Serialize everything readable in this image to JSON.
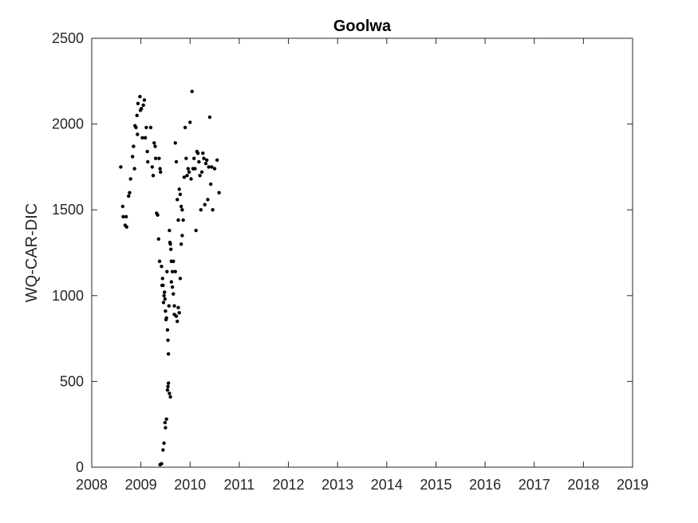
{
  "chart_data": {
    "type": "scatter",
    "title": "Goolwa",
    "xlabel": "",
    "ylabel": "WQ-CAR-DIC",
    "xlim": [
      2008,
      2019
    ],
    "ylim": [
      0,
      2500
    ],
    "xticks": [
      "2008",
      "2009",
      "2010",
      "2011",
      "2012",
      "2013",
      "2014",
      "2015",
      "2016",
      "2017",
      "2018",
      "2019"
    ],
    "yticks": [
      "0",
      "500",
      "1000",
      "1500",
      "2000",
      "2500"
    ],
    "grid": false,
    "marker_color": "#000000",
    "series": [
      {
        "points": [
          [
            2008.59,
            1750
          ],
          [
            2008.63,
            1520
          ],
          [
            2008.64,
            1460
          ],
          [
            2008.68,
            1410
          ],
          [
            2008.7,
            1460
          ],
          [
            2008.71,
            1400
          ],
          [
            2008.75,
            1580
          ],
          [
            2008.77,
            1600
          ],
          [
            2008.79,
            1680
          ],
          [
            2008.83,
            1810
          ],
          [
            2008.85,
            1870
          ],
          [
            2008.87,
            1740
          ],
          [
            2008.88,
            1990
          ],
          [
            2008.9,
            1980
          ],
          [
            2008.92,
            2050
          ],
          [
            2008.93,
            1940
          ],
          [
            2008.94,
            2120
          ],
          [
            2008.98,
            2160
          ],
          [
            2008.99,
            2080
          ],
          [
            2009.01,
            2090
          ],
          [
            2009.03,
            1920
          ],
          [
            2009.05,
            2110
          ],
          [
            2009.07,
            2140
          ],
          [
            2009.09,
            1920
          ],
          [
            2009.11,
            1980
          ],
          [
            2009.13,
            1840
          ],
          [
            2009.14,
            1780
          ],
          [
            2009.2,
            1980
          ],
          [
            2009.23,
            1750
          ],
          [
            2009.25,
            1700
          ],
          [
            2009.27,
            1890
          ],
          [
            2009.29,
            1870
          ],
          [
            2009.3,
            1800
          ],
          [
            2009.32,
            1480
          ],
          [
            2009.34,
            1470
          ],
          [
            2009.36,
            1330
          ],
          [
            2009.37,
            1800
          ],
          [
            2009.38,
            1200
          ],
          [
            2009.39,
            1740
          ],
          [
            2009.4,
            1720
          ],
          [
            2009.42,
            1170
          ],
          [
            2009.43,
            1060
          ],
          [
            2009.44,
            1100
          ],
          [
            2009.45,
            1060
          ],
          [
            2009.46,
            960
          ],
          [
            2009.47,
            1000
          ],
          [
            2009.48,
            1020
          ],
          [
            2009.49,
            980
          ],
          [
            2009.5,
            910
          ],
          [
            2009.51,
            860
          ],
          [
            2009.52,
            870
          ],
          [
            2009.53,
            1140
          ],
          [
            2009.54,
            800
          ],
          [
            2009.55,
            740
          ],
          [
            2009.56,
            660
          ],
          [
            2009.57,
            940
          ],
          [
            2009.58,
            1380
          ],
          [
            2009.59,
            1310
          ],
          [
            2009.6,
            1300
          ],
          [
            2009.61,
            1270
          ],
          [
            2009.62,
            1200
          ],
          [
            2009.64,
            1140
          ],
          [
            2009.66,
            1200
          ],
          [
            2009.68,
            940
          ],
          [
            2009.7,
            1890
          ],
          [
            2009.72,
            1780
          ],
          [
            2009.74,
            1560
          ],
          [
            2009.76,
            1440
          ],
          [
            2009.78,
            1620
          ],
          [
            2009.8,
            1590
          ],
          [
            2009.82,
            1520
          ],
          [
            2009.84,
            1500
          ],
          [
            2009.86,
            1440
          ],
          [
            2009.88,
            1690
          ],
          [
            2009.9,
            1980
          ],
          [
            2009.92,
            1800
          ],
          [
            2009.94,
            1700
          ],
          [
            2009.96,
            1740
          ],
          [
            2009.98,
            1720
          ],
          [
            2010.0,
            2010
          ],
          [
            2010.02,
            1680
          ],
          [
            2010.04,
            2190
          ],
          [
            2010.06,
            1740
          ],
          [
            2010.08,
            1800
          ],
          [
            2010.1,
            1740
          ],
          [
            2010.12,
            1380
          ],
          [
            2010.14,
            1840
          ],
          [
            2010.16,
            1830
          ],
          [
            2010.18,
            1780
          ],
          [
            2010.2,
            1700
          ],
          [
            2010.22,
            1500
          ],
          [
            2010.24,
            1720
          ],
          [
            2010.26,
            1830
          ],
          [
            2010.28,
            1800
          ],
          [
            2010.3,
            1530
          ],
          [
            2010.32,
            1770
          ],
          [
            2010.34,
            1790
          ],
          [
            2010.36,
            1560
          ],
          [
            2010.38,
            1750
          ],
          [
            2010.4,
            2040
          ],
          [
            2010.42,
            1650
          ],
          [
            2010.44,
            1750
          ],
          [
            2010.46,
            1500
          ],
          [
            2010.5,
            1740
          ],
          [
            2010.55,
            1790
          ],
          [
            2010.59,
            1600
          ],
          [
            2009.39,
            15
          ],
          [
            2009.42,
            20
          ],
          [
            2009.45,
            100
          ],
          [
            2009.47,
            140
          ],
          [
            2009.49,
            260
          ],
          [
            2009.52,
            280
          ],
          [
            2009.5,
            230
          ],
          [
            2009.54,
            450
          ],
          [
            2009.56,
            490
          ],
          [
            2009.58,
            430
          ],
          [
            2009.6,
            410
          ],
          [
            2009.55,
            470
          ],
          [
            2009.62,
            1080
          ],
          [
            2009.64,
            1050
          ],
          [
            2009.66,
            1010
          ],
          [
            2009.68,
            890
          ],
          [
            2009.7,
            1140
          ],
          [
            2009.72,
            880
          ],
          [
            2009.74,
            850
          ],
          [
            2009.76,
            930
          ],
          [
            2009.78,
            900
          ],
          [
            2009.8,
            1100
          ],
          [
            2009.82,
            1300
          ],
          [
            2009.84,
            1350
          ]
        ]
      }
    ]
  }
}
